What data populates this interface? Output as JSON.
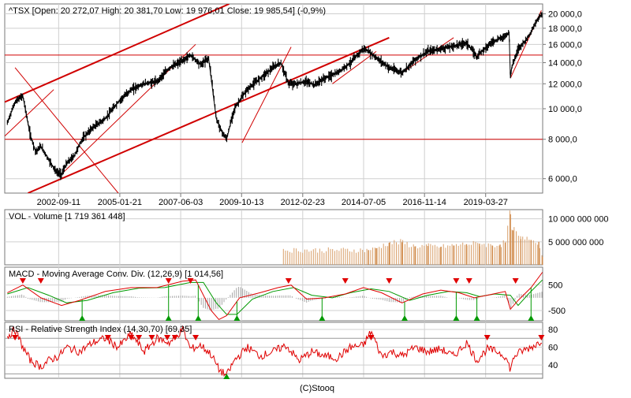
{
  "credit": "(C)Stooq",
  "chart_data": [
    {
      "type": "line",
      "title": "^TSX [Open: 20 272,07  High: 20 381,70  Low: 19 976,01  Close: 19 985,54] (-0,9%)",
      "yscale": "log",
      "ylim": [
        5400,
        21500
      ],
      "xlim": [
        2000.6,
        2021.45
      ],
      "y_ticks": [
        6000,
        8000,
        10000,
        12000,
        14000,
        16000,
        18000,
        20000
      ],
      "y_tick_labels": [
        "6 000,0",
        "8 000,0",
        "10 000,0",
        "12 000,0",
        "14 000,0",
        "16 000,0",
        "18 000,0",
        "20 000,0"
      ],
      "x_ticks": [
        2002.69,
        2005.06,
        2007.42,
        2009.78,
        2012.15,
        2014.51,
        2016.87,
        2019.24
      ],
      "x_tick_labels": [
        "2002-09-11",
        "2005-01-21",
        "2007-06-03",
        "2009-10-13",
        "2012-02-23",
        "2014-07-05",
        "2016-11-14",
        "2019-03-27"
      ],
      "horizontal_levels": [
        14800,
        8000
      ],
      "trendlines": [
        {
          "x": [
            2000.6,
            2009.3
          ],
          "y": [
            10500,
            21500
          ]
        },
        {
          "x": [
            2001.5,
            2015.5
          ],
          "y": [
            5400,
            16800
          ]
        },
        {
          "x": [
            2000.4,
            2002.5
          ],
          "y": [
            7900,
            11500
          ]
        },
        {
          "x": [
            2001.0,
            2005.0
          ],
          "y": [
            13500,
            5400
          ]
        },
        {
          "x": [
            2002.8,
            2008.0
          ],
          "y": [
            6200,
            16000
          ]
        },
        {
          "x": [
            2009.8,
            2011.7
          ],
          "y": [
            7800,
            15700
          ]
        },
        {
          "x": [
            2013.3,
            2015.0
          ],
          "y": [
            12000,
            15200
          ]
        },
        {
          "x": [
            2016.0,
            2018.0
          ],
          "y": [
            13000,
            16800
          ]
        },
        {
          "x": [
            2020.2,
            2021.4
          ],
          "y": [
            12500,
            20500
          ]
        }
      ],
      "series": [
        {
          "x": [
            2000.7,
            2001.0,
            2001.3,
            2001.5,
            2001.6,
            2001.8,
            2002.0,
            2002.3,
            2002.6,
            2002.8,
            2003.0,
            2003.3,
            2003.6,
            2004.0,
            2004.5,
            2005.0,
            2005.5,
            2006.0,
            2006.5,
            2007.0,
            2007.5,
            2007.8,
            2008.2,
            2008.5,
            2008.8,
            2009.0,
            2009.2,
            2009.5,
            2010.0,
            2010.5,
            2011.0,
            2011.3,
            2011.6,
            2011.9,
            2012.3,
            2012.6,
            2013.0,
            2013.5,
            2014.0,
            2014.5,
            2014.7,
            2015.0,
            2015.5,
            2016.0,
            2016.5,
            2017.0,
            2017.5,
            2018.0,
            2018.5,
            2018.9,
            2019.0,
            2019.5,
            2020.0,
            2020.15,
            2020.2,
            2020.25,
            2020.5,
            2020.8,
            2021.0,
            2021.3,
            2021.44
          ],
          "y": [
            9000,
            10500,
            11000,
            9000,
            8200,
            7300,
            7600,
            6900,
            6300,
            6200,
            6700,
            7100,
            8000,
            8700,
            9300,
            10500,
            11500,
            12000,
            12200,
            13500,
            14200,
            14800,
            13800,
            14500,
            9300,
            8500,
            8000,
            10000,
            11500,
            12500,
            13500,
            14000,
            12000,
            12000,
            12200,
            11900,
            12500,
            13000,
            14000,
            15500,
            15200,
            14500,
            13500,
            13000,
            14300,
            15200,
            15500,
            15800,
            16200,
            14600,
            15000,
            16300,
            17000,
            17500,
            12500,
            13500,
            15500,
            16500,
            17500,
            19500,
            20000
          ]
        }
      ]
    },
    {
      "type": "bar",
      "title": "VOL - Volume [1 719 361 448]",
      "y_ticks": [
        5000000000,
        10000000000
      ],
      "y_tick_labels": [
        "5 000 000 000",
        "10 000 000 000"
      ],
      "ylim": [
        0,
        12000000000
      ],
      "x": [
        2014.7,
        2015.0,
        2015.5,
        2016.0,
        2016.5,
        2017.0,
        2017.5,
        2018.0,
        2018.5,
        2019.0,
        2019.5,
        2019.8,
        2020.0,
        2020.2,
        2020.3,
        2020.6,
        2021.0,
        2021.3,
        2021.44
      ],
      "values": [
        3200000000,
        3600000000,
        4800000000,
        4900000000,
        4000000000,
        4100000000,
        3900000000,
        4200000000,
        4500000000,
        4600000000,
        4200000000,
        4400000000,
        4800000000,
        11000000000,
        7500000000,
        5600000000,
        5400000000,
        5000000000,
        1719361448
      ]
    },
    {
      "type": "line",
      "title": "MACD - Moving Average Conv. Div. (12,26,9) [1 014,56]",
      "y_ticks": [
        500,
        -500
      ],
      "y_tick_labels": [
        "500",
        "-500"
      ],
      "ylim": [
        -900,
        1200
      ],
      "series": [
        {
          "name": "MACD",
          "x": [
            2000.7,
            2001.3,
            2002.0,
            2002.8,
            2003.5,
            2004.5,
            2005.5,
            2006.5,
            2007.5,
            2008.0,
            2008.6,
            2008.9,
            2009.2,
            2009.7,
            2010.5,
            2011.2,
            2011.7,
            2012.3,
            2013.0,
            2013.8,
            2014.5,
            2015.2,
            2016.0,
            2016.8,
            2017.5,
            2018.2,
            2018.8,
            2019.3,
            2020.0,
            2020.2,
            2020.5,
            2021.0,
            2021.44
          ],
          "y": [
            200,
            500,
            0,
            -300,
            -100,
            250,
            400,
            400,
            650,
            700,
            -500,
            -850,
            -700,
            0,
            200,
            400,
            500,
            -50,
            0,
            150,
            400,
            200,
            -200,
            150,
            300,
            200,
            0,
            100,
            250,
            -450,
            -100,
            400,
            1000
          ]
        },
        {
          "name": "Signal",
          "x": [
            2000.7,
            2001.5,
            2002.3,
            2003.0,
            2003.8,
            2004.8,
            2005.8,
            2006.8,
            2007.8,
            2008.3,
            2008.8,
            2009.2,
            2009.6,
            2010.2,
            2011.0,
            2011.8,
            2012.5,
            2013.3,
            2014.0,
            2014.8,
            2015.5,
            2016.3,
            2017.0,
            2017.8,
            2018.5,
            2019.0,
            2019.6,
            2020.2,
            2020.5,
            2020.9,
            2021.44
          ],
          "y": [
            150,
            400,
            100,
            -200,
            -100,
            200,
            380,
            400,
            600,
            600,
            -200,
            -650,
            -650,
            -50,
            250,
            400,
            100,
            0,
            200,
            350,
            250,
            -100,
            100,
            250,
            200,
            50,
            150,
            100,
            -300,
            150,
            700
          ]
        }
      ],
      "signals": [
        {
          "dir": "down",
          "x": 2001.3
        },
        {
          "dir": "down",
          "x": 2002.0
        },
        {
          "dir": "up",
          "x": 2003.6
        },
        {
          "dir": "down",
          "x": 2006.95
        },
        {
          "dir": "up",
          "x": 2006.95
        },
        {
          "dir": "down",
          "x": 2007.8
        },
        {
          "dir": "up",
          "x": 2008.1
        },
        {
          "dir": "up",
          "x": 2009.6
        },
        {
          "dir": "down",
          "x": 2011.6
        },
        {
          "dir": "up",
          "x": 2012.9
        },
        {
          "dir": "down",
          "x": 2013.8
        },
        {
          "dir": "down",
          "x": 2015.5
        },
        {
          "dir": "up",
          "x": 2016.1
        },
        {
          "dir": "down",
          "x": 2018.1
        },
        {
          "dir": "up",
          "x": 2018.1
        },
        {
          "dir": "down",
          "x": 2018.6
        },
        {
          "dir": "up",
          "x": 2018.9
        },
        {
          "dir": "down",
          "x": 2020.4
        },
        {
          "dir": "up",
          "x": 2021.0
        }
      ]
    },
    {
      "type": "line",
      "title": "RSI - Relative Strength Index (14,30,70) [69,35]",
      "y_ticks": [
        80,
        60,
        40
      ],
      "y_tick_labels": [
        "80",
        "60",
        "40"
      ],
      "ylim": [
        25,
        88
      ],
      "reference_levels": [
        70,
        30
      ],
      "series": [
        {
          "name": "RSI",
          "x": [
            2000.7,
            2001.0,
            2001.3,
            2001.6,
            2002.0,
            2002.3,
            2002.7,
            2003.0,
            2003.5,
            2004.0,
            2004.5,
            2005.0,
            2005.5,
            2006.0,
            2006.5,
            2007.0,
            2007.5,
            2007.8,
            2008.2,
            2008.6,
            2008.9,
            2009.2,
            2009.5,
            2010.0,
            2010.5,
            2011.0,
            2011.5,
            2012.0,
            2012.5,
            2013.0,
            2013.5,
            2014.0,
            2014.5,
            2014.8,
            2015.2,
            2015.6,
            2016.0,
            2016.5,
            2017.0,
            2017.5,
            2018.0,
            2018.5,
            2018.9,
            2019.3,
            2019.7,
            2020.0,
            2020.2,
            2020.35,
            2020.6,
            2021.0,
            2021.3,
            2021.44
          ],
          "y": [
            72,
            80,
            60,
            45,
            38,
            45,
            50,
            60,
            55,
            65,
            70,
            60,
            75,
            55,
            70,
            65,
            80,
            58,
            62,
            52,
            35,
            28,
            45,
            60,
            50,
            55,
            62,
            45,
            55,
            50,
            48,
            60,
            62,
            78,
            50,
            55,
            50,
            60,
            55,
            58,
            50,
            65,
            45,
            58,
            55,
            50,
            35,
            50,
            55,
            60,
            65,
            69.35
          ]
        }
      ],
      "signals": [
        {
          "dir": "down",
          "x": 2001.0
        },
        {
          "dir": "down",
          "x": 2004.6
        },
        {
          "dir": "down",
          "x": 2005.5
        },
        {
          "dir": "down",
          "x": 2005.8
        },
        {
          "dir": "down",
          "x": 2006.3
        },
        {
          "dir": "down",
          "x": 2006.9
        },
        {
          "dir": "down",
          "x": 2007.2
        },
        {
          "dir": "down",
          "x": 2008.0
        },
        {
          "dir": "up",
          "x": 2009.2
        },
        {
          "dir": "down",
          "x": 2014.8
        },
        {
          "dir": "down",
          "x": 2019.3
        },
        {
          "dir": "down",
          "x": 2021.4
        }
      ]
    }
  ]
}
